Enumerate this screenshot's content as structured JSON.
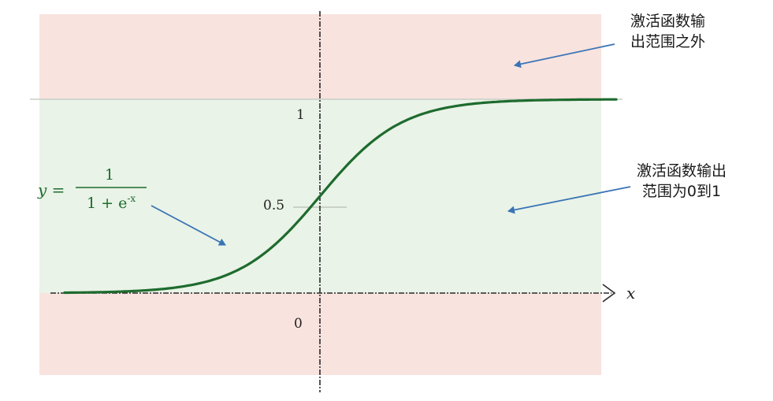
{
  "region_colors": {
    "outside": "#f8e3de",
    "inside": "#e9f3e7"
  },
  "curve_color": "#1e6b2e",
  "arrow_color": "#3a74b6",
  "y_ticks": {
    "one": "1",
    "half": "0.5",
    "zero": "0"
  },
  "x_axis_label": "x",
  "equation": {
    "lhs": "y =",
    "numerator": "1",
    "denominator_base": "1 + e",
    "denominator_exp": "-x"
  },
  "notes": {
    "outside_range": [
      "激活函数输",
      "出范围之外"
    ],
    "inside_range": [
      "激活函数输出",
      "范围为0到1"
    ]
  }
}
